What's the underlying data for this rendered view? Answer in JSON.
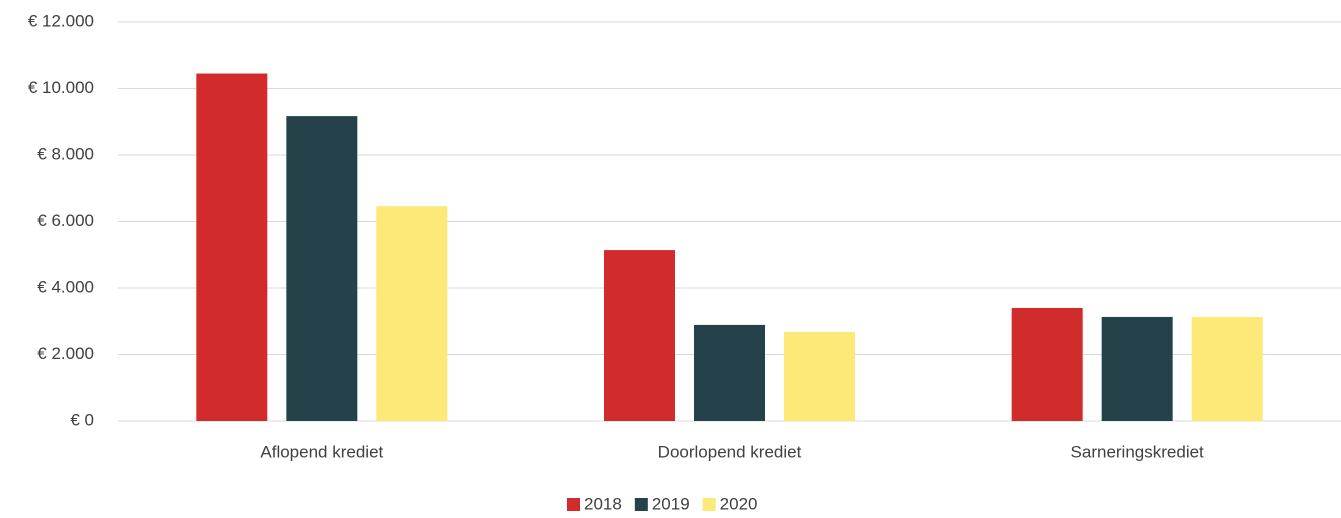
{
  "chart_data": {
    "type": "bar",
    "categories": [
      "Aflopend krediet",
      "Doorlopend krediet",
      "Sarneringskrediet"
    ],
    "series": [
      {
        "name": "2018",
        "color": "#d22b2b",
        "values": [
          10450,
          5140,
          3400
        ]
      },
      {
        "name": "2019",
        "color": "#25424a",
        "values": [
          9170,
          2890,
          3130
        ]
      },
      {
        "name": "2020",
        "color": "#fce978",
        "values": [
          6460,
          2680,
          3130
        ]
      }
    ],
    "ylim": [
      0,
      12000
    ],
    "yticks": [
      {
        "value": 0,
        "label": "€ 0"
      },
      {
        "value": 2000,
        "label": "€ 2.000"
      },
      {
        "value": 4000,
        "label": "€ 4.000"
      },
      {
        "value": 6000,
        "label": "€ 6.000"
      },
      {
        "value": 8000,
        "label": "€ 8.000"
      },
      {
        "value": 10000,
        "label": "€ 10.000"
      },
      {
        "value": 12000,
        "label": "€ 12.000"
      }
    ],
    "grid": true,
    "legend": "bottom"
  }
}
